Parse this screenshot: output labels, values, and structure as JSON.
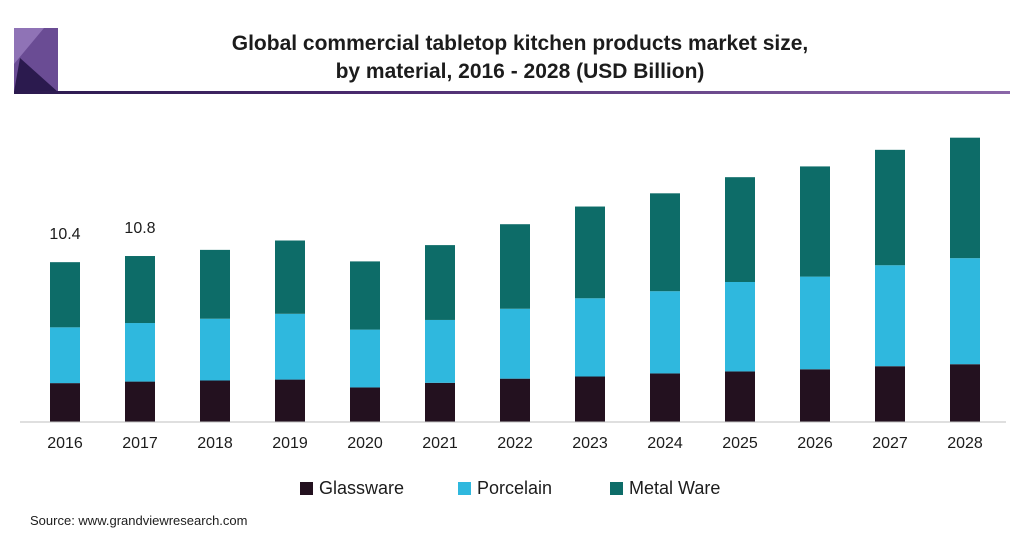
{
  "header": {
    "title_line1": "Global commercial tabletop kitchen products market size,",
    "title_line2": "by material, 2016 - 2028 (USD Billion)"
  },
  "colors": {
    "glassware": "#23111f",
    "porcelain": "#2fb8de",
    "metal_ware": "#0d6c68",
    "logo_dark": "#2b1a4e",
    "logo_light": "#6a4c94"
  },
  "chart_data": {
    "type": "bar",
    "stacked": true,
    "title": "Global commercial tabletop kitchen products market size, by material, 2016 - 2028 (USD Billion)",
    "xlabel": "",
    "ylabel": "",
    "categories": [
      "2016",
      "2017",
      "2018",
      "2019",
      "2020",
      "2021",
      "2022",
      "2023",
      "2024",
      "2025",
      "2026",
      "2027",
      "2028"
    ],
    "series": [
      {
        "name": "Glassware",
        "values": [
          2.53,
          2.63,
          2.7,
          2.76,
          2.25,
          2.55,
          2.82,
          2.96,
          3.16,
          3.29,
          3.43,
          3.63,
          3.76
        ]
      },
      {
        "name": "Porcelain",
        "values": [
          3.63,
          3.81,
          4.02,
          4.28,
          3.76,
          4.09,
          4.55,
          5.09,
          5.35,
          5.82,
          6.03,
          6.57,
          6.9
        ]
      },
      {
        "name": "Metal Ware",
        "values": [
          4.24,
          4.36,
          4.48,
          4.77,
          4.44,
          4.87,
          5.5,
          5.97,
          6.37,
          6.82,
          7.17,
          7.51,
          7.84
        ]
      }
    ],
    "totals": [
      10.4,
      10.8,
      11.2,
      11.8,
      10.45,
      11.51,
      12.87,
      14.02,
      14.88,
      15.93,
      16.63,
      17.71,
      18.5
    ],
    "data_labels": [
      {
        "category": "2016",
        "text": "10.4"
      },
      {
        "category": "2017",
        "text": "10.8"
      }
    ],
    "ylim": [
      0,
      19
    ],
    "grid": false,
    "legend_position": "bottom"
  },
  "legend": [
    {
      "label": "Glassware",
      "color_key": "glassware"
    },
    {
      "label": "Porcelain",
      "color_key": "porcelain"
    },
    {
      "label": "Metal Ware",
      "color_key": "metal_ware"
    }
  ],
  "source": "Source: www.grandviewresearch.com"
}
